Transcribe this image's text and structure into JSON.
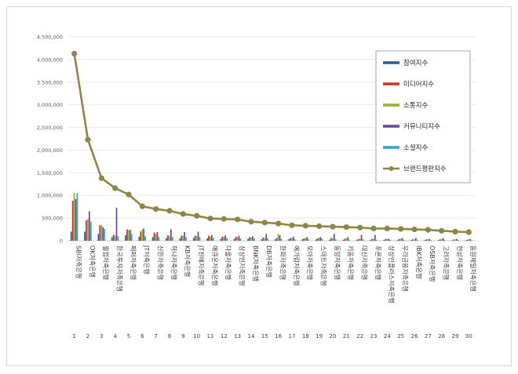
{
  "chart_data": {
    "type": "bar",
    "ylim": [
      0,
      4500000
    ],
    "yticks": [
      0,
      500000,
      1000000,
      1500000,
      2000000,
      2500000,
      3000000,
      3500000,
      4000000,
      4500000
    ],
    "ytick_labels": [
      "0",
      "500,000",
      "1,000,000",
      "1,500,000",
      "2,000,000",
      "2,500,000",
      "3,000,000",
      "3,500,000",
      "4,000,000",
      "4,500,000"
    ],
    "legend_position": "top-right",
    "grid": true,
    "x_numbers": [
      "1",
      "2",
      "3",
      "4",
      "5",
      "6",
      "7",
      "8",
      "9",
      "10",
      "11",
      "12",
      "13",
      "14",
      "15",
      "16",
      "17",
      "18",
      "19",
      "20",
      "21",
      "22",
      "23",
      "24",
      "25",
      "26",
      "27",
      "28",
      "29",
      "30"
    ],
    "categories": [
      "SBI저축은행",
      "OK저축은행",
      "웰컴저축은행",
      "한국투자저축은행",
      "페퍼저축은행",
      "JT저축은행",
      "신한저축은행",
      "하나저축은행",
      "KB저축은행",
      "JT친애저축은행",
      "애큐온저축은행",
      "다올저축은행",
      "상상인저축은행",
      "BNK저축은행",
      "DB저축은행",
      "한화저축은행",
      "예가람저축은행",
      "모아저축은행",
      "스마트저축은행",
      "동양저축은행",
      "키움저축은행",
      "대신저축은행",
      "푸른저축은행",
      "상상인플러스저축은행",
      "우리금융저축은행",
      "IBK저축은행",
      "OSB저축은행",
      "고려저축은행",
      "현성저축은행",
      "동원제일저축은행"
    ],
    "series": [
      {
        "name": "참여지수",
        "color": "#2e5d9e",
        "values": [
          200000,
          200000,
          150000,
          80000,
          120000,
          90000,
          80000,
          60000,
          50000,
          60000,
          50000,
          40000,
          40000,
          40000,
          30000,
          30000,
          30000,
          30000,
          25000,
          20000,
          20000,
          20000,
          15000,
          15000,
          15000,
          15000,
          12000,
          12000,
          10000,
          10000
        ]
      },
      {
        "name": "미디어지수",
        "color": "#c0392b",
        "values": [
          880000,
          450000,
          340000,
          130000,
          250000,
          200000,
          180000,
          120000,
          110000,
          110000,
          110000,
          90000,
          90000,
          80000,
          70000,
          60000,
          60000,
          50000,
          50000,
          60000,
          40000,
          40000,
          40000,
          40000,
          40000,
          30000,
          30000,
          30000,
          25000,
          20000
        ]
      },
      {
        "name": "소통지수",
        "color": "#8db33b",
        "values": [
          1050000,
          480000,
          350000,
          110000,
          230000,
          240000,
          150000,
          100000,
          110000,
          100000,
          90000,
          80000,
          80000,
          70000,
          60000,
          150000,
          50000,
          60000,
          70000,
          50000,
          50000,
          40000,
          40000,
          40000,
          40000,
          30000,
          30000,
          30000,
          30000,
          30000
        ]
      },
      {
        "name": "커뮤니티지수",
        "color": "#6b4ba0",
        "values": [
          920000,
          650000,
          300000,
          730000,
          240000,
          270000,
          190000,
          250000,
          190000,
          200000,
          120000,
          120000,
          110000,
          100000,
          150000,
          120000,
          90000,
          80000,
          80000,
          150000,
          80000,
          130000,
          130000,
          40000,
          60000,
          60000,
          40000,
          60000,
          40000,
          40000
        ]
      },
      {
        "name": "소셜지수",
        "color": "#2aa9c8",
        "values": [
          1050000,
          420000,
          260000,
          100000,
          150000,
          100000,
          80000,
          80000,
          80000,
          80000,
          60000,
          60000,
          50000,
          50000,
          50000,
          40000,
          30000,
          30000,
          40000,
          30000,
          20000,
          30000,
          20000,
          20000,
          20000,
          20000,
          15000,
          20000,
          15000,
          15000
        ]
      },
      {
        "name": "브랜드평판지수",
        "color": "#8e8647",
        "line": true,
        "values": [
          4130000,
          2230000,
          1380000,
          1160000,
          1020000,
          760000,
          700000,
          660000,
          590000,
          550000,
          490000,
          480000,
          470000,
          420000,
          400000,
          380000,
          340000,
          330000,
          320000,
          310000,
          300000,
          290000,
          270000,
          270000,
          260000,
          250000,
          240000,
          220000,
          200000,
          190000
        ]
      }
    ]
  }
}
